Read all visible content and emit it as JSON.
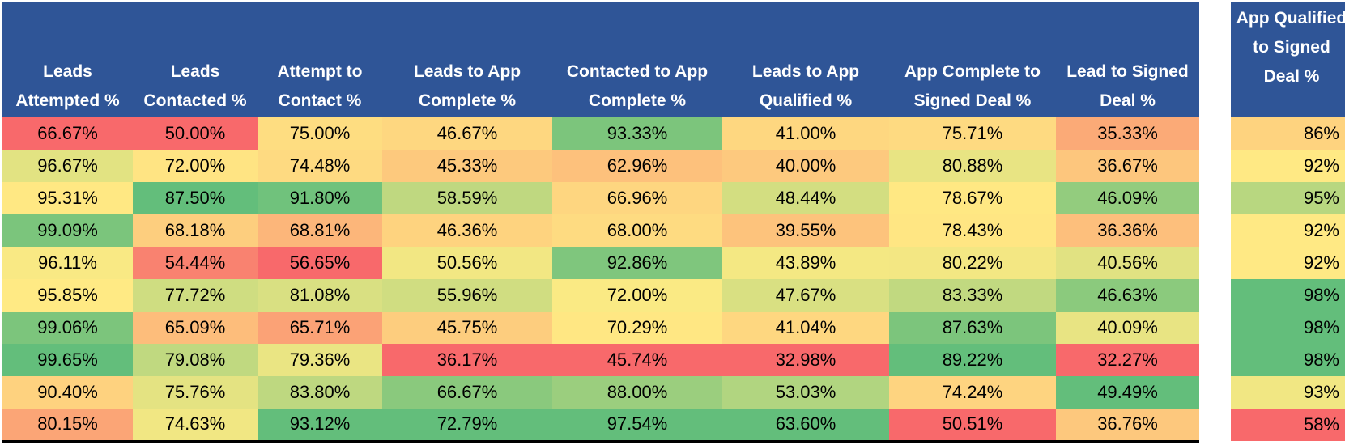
{
  "color_scale": {
    "low": "#F8696B",
    "mid": "#FFEB84",
    "high": "#63BE7B",
    "header_bg": "#2F5597"
  },
  "main_table": {
    "headers": [
      "Leads Attempted %",
      "Leads Contacted %",
      "Attempt to Contact %",
      "Leads to App Complete %",
      "Contacted to App Complete %",
      "Leads to App Qualified %",
      "App Complete to Signed Deal %",
      "Lead to Signed Deal %"
    ],
    "rows": [
      [
        "66.67%",
        "50.00%",
        "75.00%",
        "46.67%",
        "93.33%",
        "41.00%",
        "75.71%",
        "35.33%"
      ],
      [
        "96.67%",
        "72.00%",
        "74.48%",
        "45.33%",
        "62.96%",
        "40.00%",
        "80.88%",
        "36.67%"
      ],
      [
        "95.31%",
        "87.50%",
        "91.80%",
        "58.59%",
        "66.96%",
        "48.44%",
        "78.67%",
        "46.09%"
      ],
      [
        "99.09%",
        "68.18%",
        "68.81%",
        "46.36%",
        "68.00%",
        "39.55%",
        "78.43%",
        "36.36%"
      ],
      [
        "96.11%",
        "54.44%",
        "56.65%",
        "50.56%",
        "92.86%",
        "43.89%",
        "80.22%",
        "40.56%"
      ],
      [
        "95.85%",
        "77.72%",
        "81.08%",
        "55.96%",
        "72.00%",
        "47.67%",
        "83.33%",
        "46.63%"
      ],
      [
        "99.06%",
        "65.09%",
        "65.71%",
        "45.75%",
        "70.29%",
        "41.04%",
        "87.63%",
        "40.09%"
      ],
      [
        "99.65%",
        "79.08%",
        "79.36%",
        "36.17%",
        "45.74%",
        "32.98%",
        "89.22%",
        "32.27%"
      ],
      [
        "90.40%",
        "75.76%",
        "83.80%",
        "66.67%",
        "88.00%",
        "53.03%",
        "74.24%",
        "49.49%"
      ],
      [
        "80.15%",
        "74.63%",
        "93.12%",
        "72.79%",
        "97.54%",
        "63.60%",
        "50.51%",
        "36.76%"
      ]
    ]
  },
  "side_table": {
    "header": "App Qualified to Signed Deal %",
    "values": [
      "86%",
      "92%",
      "95%",
      "92%",
      "92%",
      "98%",
      "98%",
      "98%",
      "93%",
      "58%"
    ]
  }
}
